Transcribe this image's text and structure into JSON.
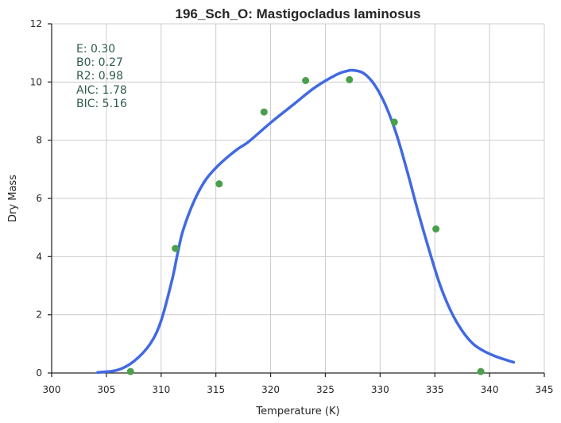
{
  "chart_data": {
    "type": "scatter",
    "title": "196_Sch_O: Mastigocladus laminosus",
    "xlabel": "Temperature (K)",
    "ylabel": "Dry Mass",
    "xlim": [
      300,
      345
    ],
    "ylim": [
      0,
      12
    ],
    "xticks": [
      "300",
      "305",
      "310",
      "315",
      "320",
      "325",
      "330",
      "335",
      "340",
      "345"
    ],
    "yticks": [
      "0",
      "2",
      "4",
      "6",
      "8",
      "10",
      "12"
    ],
    "grid": true,
    "points": {
      "color": "#4aa04a",
      "x": [
        307.2,
        311.3,
        315.3,
        319.4,
        323.2,
        327.2,
        331.3,
        335.1,
        339.2
      ],
      "y": [
        0.05,
        4.28,
        6.5,
        8.97,
        10.05,
        10.08,
        8.62,
        4.95,
        0.05
      ]
    },
    "fit_curve": {
      "color": "#4169e1",
      "x": [
        304.2,
        306,
        307.5,
        309,
        310,
        311,
        311.5,
        312,
        313,
        314,
        315,
        316,
        317,
        318,
        320,
        322,
        324,
        326,
        327,
        327.6,
        328.5,
        329.5,
        330.5,
        331.5,
        332.5,
        333.5,
        334.5,
        335.5,
        336.5,
        337.5,
        338.5,
        339.5,
        340.5,
        341.5,
        342.2
      ],
      "y": [
        0.02,
        0.1,
        0.4,
        1.0,
        1.8,
        3.2,
        4.1,
        4.9,
        5.9,
        6.6,
        7.05,
        7.4,
        7.7,
        7.95,
        8.6,
        9.2,
        9.8,
        10.25,
        10.38,
        10.4,
        10.3,
        9.9,
        9.2,
        8.2,
        6.9,
        5.5,
        4.2,
        3.0,
        2.1,
        1.45,
        1.0,
        0.75,
        0.58,
        0.45,
        0.37
      ]
    },
    "stats": [
      "E:  0.30",
      "B0:  0.27",
      "R2:  0.98",
      "AIC: 1.78",
      "BIC: 5.16"
    ]
  }
}
